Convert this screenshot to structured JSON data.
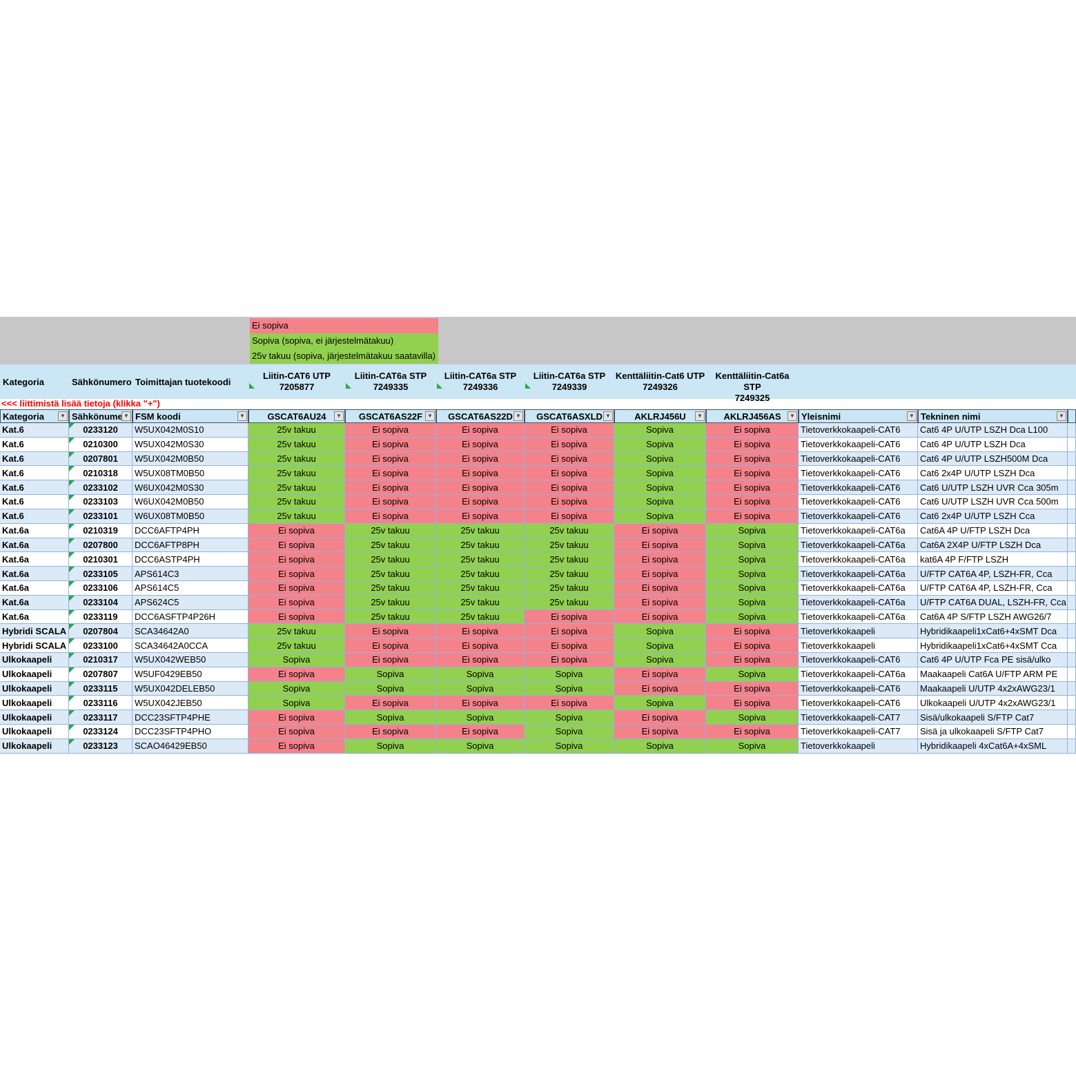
{
  "colors": {
    "status_red": "#f4828a",
    "status_green": "#92d050",
    "band_gray": "#c7c7c7",
    "header_blue": "#cbe6f5",
    "row_blue": "#dce9f6",
    "row_white": "#ffffff",
    "border_blue": "#8eb4df",
    "filter_border": "#44546a",
    "note_red": "#ff0000",
    "indicator_green": "#2da44e"
  },
  "legend": {
    "items": [
      {
        "label": "Ei sopiva",
        "status": "E"
      },
      {
        "label": "Sopiva (sopiva, ei järjestelmätakuu)",
        "status": "S"
      },
      {
        "label": "25v takuu (sopiva, järjestelmätakuu saatavilla)",
        "status": "T"
      }
    ]
  },
  "group_header": {
    "left_labels": [
      "Kategoria",
      "Sähkönumero",
      "Toimittajan tuotekoodi"
    ],
    "connectors": [
      {
        "name": "Liitin-CAT6 UTP",
        "code": "7205877",
        "marker": true
      },
      {
        "name": "Liitin-CAT6a STP",
        "code": "7249335",
        "marker": true
      },
      {
        "name": "Liitin-CAT6a STP",
        "code": "7249336",
        "marker": true
      },
      {
        "name": "Liitin-CAT6a STP",
        "code": "7249339",
        "marker": true
      },
      {
        "name": "Kenttäliitin-Cat6 UTP",
        "code": "7249326",
        "marker": false
      },
      {
        "name": "Kenttäliitin-Cat6a STP",
        "code": "7249325",
        "marker": false
      }
    ]
  },
  "note": {
    "text": "<<<  liittimistä lisää tietoja (klikka \"+\")"
  },
  "filter_row": {
    "columns": [
      "Kategoria",
      "Sähkönume",
      "FSM koodi",
      "GSCAT6AU24",
      "GSCAT6AS22F",
      "GSCAT6AS22D",
      "GSCAT6ASXLD",
      "AKLRJ456U",
      "AKLRJ456AS",
      "Yleisnimi",
      "Tekninen nimi"
    ]
  },
  "status_labels": {
    "E": "Ei sopiva",
    "S": "Sopiva",
    "T": "25v takuu"
  },
  "rows": [
    {
      "kategoria": "Kat.6",
      "sahkonumero": "0233120",
      "fsm": "W5UX042M0S10",
      "statuses": [
        "T",
        "E",
        "E",
        "E",
        "S",
        "E"
      ],
      "yleisnimi": "Tietoverkkokaapeli-CAT6",
      "tekninen": "Cat6 4P U/UTP LSZH Dca L100"
    },
    {
      "kategoria": "Kat.6",
      "sahkonumero": "0210300",
      "fsm": "W5UX042M0S30",
      "statuses": [
        "T",
        "E",
        "E",
        "E",
        "S",
        "E"
      ],
      "yleisnimi": "Tietoverkkokaapeli-CAT6",
      "tekninen": "Cat6 4P U/UTP LSZH Dca"
    },
    {
      "kategoria": "Kat.6",
      "sahkonumero": "0207801",
      "fsm": "W5UX042M0B50",
      "statuses": [
        "T",
        "E",
        "E",
        "E",
        "S",
        "E"
      ],
      "yleisnimi": "Tietoverkkokaapeli-CAT6",
      "tekninen": "Cat6 4P U/UTP LSZH500M Dca"
    },
    {
      "kategoria": "Kat.6",
      "sahkonumero": "0210318",
      "fsm": "W5UX08TM0B50",
      "statuses": [
        "T",
        "E",
        "E",
        "E",
        "S",
        "E"
      ],
      "yleisnimi": "Tietoverkkokaapeli-CAT6",
      "tekninen": "Cat6 2x4P U/UTP LSZH Dca"
    },
    {
      "kategoria": "Kat.6",
      "sahkonumero": "0233102",
      "fsm": "W6UX042M0S30",
      "statuses": [
        "T",
        "E",
        "E",
        "E",
        "S",
        "E"
      ],
      "yleisnimi": "Tietoverkkokaapeli-CAT6",
      "tekninen": "Cat6 U/UTP LSZH UVR Cca 305m"
    },
    {
      "kategoria": "Kat.6",
      "sahkonumero": "0233103",
      "fsm": "W6UX042M0B50",
      "statuses": [
        "T",
        "E",
        "E",
        "E",
        "S",
        "E"
      ],
      "yleisnimi": "Tietoverkkokaapeli-CAT6",
      "tekninen": "Cat6 U/UTP LSZH UVR Cca 500m"
    },
    {
      "kategoria": "Kat.6",
      "sahkonumero": "0233101",
      "fsm": "W6UX08TM0B50",
      "statuses": [
        "T",
        "E",
        "E",
        "E",
        "S",
        "E"
      ],
      "yleisnimi": "Tietoverkkokaapeli-CAT6",
      "tekninen": "Cat6 2x4P U/UTP LSZH Cca"
    },
    {
      "kategoria": "Kat.6a",
      "sahkonumero": "0210319",
      "fsm": "DCC6AFTP4PH",
      "statuses": [
        "E",
        "T",
        "T",
        "T",
        "E",
        "S"
      ],
      "yleisnimi": "Tietoverkkokaapeli-CAT6a",
      "tekninen": "Cat6A 4P U/FTP LSZH Dca"
    },
    {
      "kategoria": "Kat.6a",
      "sahkonumero": "0207800",
      "fsm": "DCC6AFTP8PH",
      "statuses": [
        "E",
        "T",
        "T",
        "T",
        "E",
        "S"
      ],
      "yleisnimi": "Tietoverkkokaapeli-CAT6a",
      "tekninen": "Cat6A 2X4P U/FTP LSZH Dca"
    },
    {
      "kategoria": "Kat.6a",
      "sahkonumero": "0210301",
      "fsm": "DCC6ASTP4PH",
      "statuses": [
        "E",
        "T",
        "T",
        "T",
        "E",
        "S"
      ],
      "yleisnimi": "Tietoverkkokaapeli-CAT6a",
      "tekninen": "kat6A 4P F/FTP LSZH"
    },
    {
      "kategoria": "Kat.6a",
      "sahkonumero": "0233105",
      "fsm": "APS614C3",
      "statuses": [
        "E",
        "T",
        "T",
        "T",
        "E",
        "S"
      ],
      "yleisnimi": "Tietoverkkokaapeli-CAT6a",
      "tekninen": "U/FTP CAT6A 4P, LSZH-FR, Cca"
    },
    {
      "kategoria": "Kat.6a",
      "sahkonumero": "0233106",
      "fsm": "APS614C5",
      "statuses": [
        "E",
        "T",
        "T",
        "T",
        "E",
        "S"
      ],
      "yleisnimi": "Tietoverkkokaapeli-CAT6a",
      "tekninen": "U/FTP CAT6A 4P, LSZH-FR, Cca"
    },
    {
      "kategoria": "Kat.6a",
      "sahkonumero": "0233104",
      "fsm": "APS624C5",
      "statuses": [
        "E",
        "T",
        "T",
        "T",
        "E",
        "S"
      ],
      "yleisnimi": "Tietoverkkokaapeli-CAT6a",
      "tekninen": "U/FTP CAT6A DUAL, LSZH-FR, Cca"
    },
    {
      "kategoria": "Kat.6a",
      "sahkonumero": "0233119",
      "fsm": "DCC6ASFTP4P26H",
      "statuses": [
        "E",
        "T",
        "T",
        "E",
        "E",
        "S"
      ],
      "yleisnimi": "Tietoverkkokaapeli-CAT6a",
      "tekninen": "Cat6A 4P S/FTP LSZH AWG26/7"
    },
    {
      "kategoria": "Hybridi SCALA",
      "sahkonumero": "0207804",
      "fsm": "SCA34642A0",
      "statuses": [
        "T",
        "E",
        "E",
        "E",
        "S",
        "E"
      ],
      "yleisnimi": "Tietoverkkokaapeli",
      "tekninen": "Hybridikaapeli1xCat6+4xSMT Dca"
    },
    {
      "kategoria": "Hybridi SCALA",
      "sahkonumero": "0233100",
      "fsm": "SCA34642A0CCA",
      "statuses": [
        "T",
        "E",
        "E",
        "E",
        "S",
        "E"
      ],
      "yleisnimi": "Tietoverkkokaapeli",
      "tekninen": "Hybridikaapeli1xCat6+4xSMT Cca"
    },
    {
      "kategoria": "Ulkokaapeli",
      "sahkonumero": "0210317",
      "fsm": "W5UX042WEB50",
      "statuses": [
        "S",
        "E",
        "E",
        "E",
        "S",
        "E"
      ],
      "yleisnimi": "Tietoverkkokaapeli-CAT6",
      "tekninen": "Cat6 4P U/UTP Fca PE sisä/ulko"
    },
    {
      "kategoria": "Ulkokaapeli",
      "sahkonumero": "0207807",
      "fsm": "W5UF0429EB50",
      "statuses": [
        "E",
        "S",
        "S",
        "S",
        "E",
        "S"
      ],
      "yleisnimi": "Tietoverkkokaapeli-CAT6a",
      "tekninen": "Maakaapeli Cat6A U/FTP ARM PE"
    },
    {
      "kategoria": "Ulkokaapeli",
      "sahkonumero": "0233115",
      "fsm": "W5UX042DELEB50",
      "statuses": [
        "S",
        "S",
        "S",
        "S",
        "E",
        "E"
      ],
      "yleisnimi": "Tietoverkkokaapeli-CAT6",
      "tekninen": "Maakaapeli U/UTP 4x2xAWG23/1"
    },
    {
      "kategoria": "Ulkokaapeli",
      "sahkonumero": "0233116",
      "fsm": "W5UX042JEB50",
      "statuses": [
        "S",
        "E",
        "E",
        "E",
        "S",
        "E"
      ],
      "yleisnimi": "Tietoverkkokaapeli-CAT6",
      "tekninen": "Ulkokaapeli U/UTP 4x2xAWG23/1"
    },
    {
      "kategoria": "Ulkokaapeli",
      "sahkonumero": "0233117",
      "fsm": "DCC23SFTP4PHE",
      "statuses": [
        "E",
        "S",
        "S",
        "S",
        "E",
        "S"
      ],
      "yleisnimi": "Tietoverkkokaapeli-CAT7",
      "tekninen": "Sisä/ulkokaapeli S/FTP Cat7"
    },
    {
      "kategoria": "Ulkokaapeli",
      "sahkonumero": "0233124",
      "fsm": "DCC23SFTP4PHO",
      "statuses": [
        "E",
        "E",
        "E",
        "S",
        "E",
        "E"
      ],
      "yleisnimi": "Tietoverkkokaapeli-CAT7",
      "tekninen": "Sisä ja ulkokaapeli S/FTP Cat7"
    },
    {
      "kategoria": "Ulkokaapeli",
      "sahkonumero": "0233123",
      "fsm": "SCAO46429EB50",
      "statuses": [
        "E",
        "S",
        "S",
        "S",
        "S",
        "S"
      ],
      "yleisnimi": "Tietoverkkokaapeli",
      "tekninen": "Hybridikaapeli 4xCat6A+4xSML"
    }
  ]
}
